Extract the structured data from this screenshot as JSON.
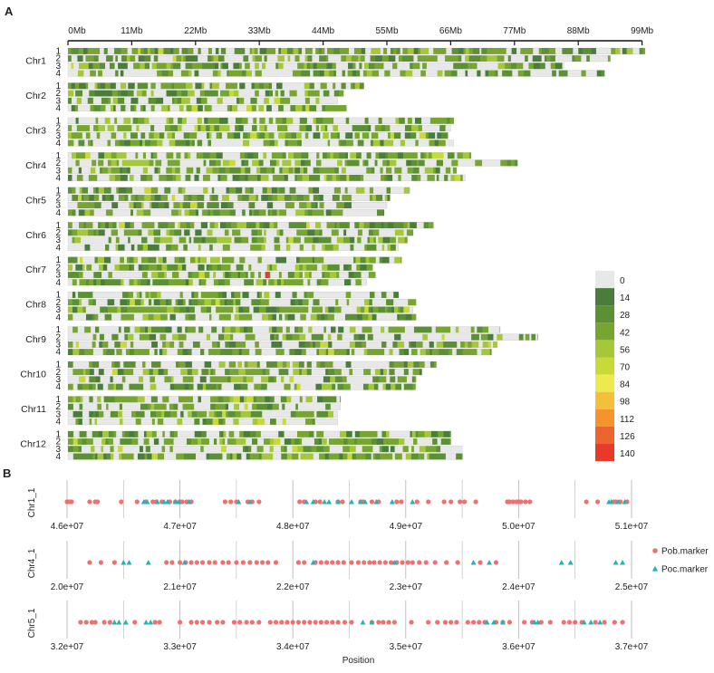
{
  "panel_a_label": "A",
  "panel_b_label": "B",
  "chart_data": [
    {
      "type": "heatmap",
      "x_ticks": [
        "0Mb",
        "11Mb",
        "22Mb",
        "33Mb",
        "44Mb",
        "55Mb",
        "66Mb",
        "77Mb",
        "88Mb",
        "99Mb"
      ],
      "x_tick_values_mb": [
        0,
        11,
        22,
        33,
        44,
        55,
        66,
        77,
        88,
        99
      ],
      "track_labels": [
        "1",
        "2",
        "3",
        "4"
      ],
      "chromosomes": [
        {
          "name": "Chr1",
          "lengths_mb": [
            99.5,
            93.5,
            85.5,
            92.5
          ]
        },
        {
          "name": "Chr2",
          "lengths_mb": [
            51.0,
            47.5,
            46.5,
            48.0
          ]
        },
        {
          "name": "Chr3",
          "lengths_mb": [
            66.5,
            66.0,
            65.5,
            66.5
          ]
        },
        {
          "name": "Chr4",
          "lengths_mb": [
            69.5,
            77.5,
            67.0,
            68.5
          ]
        },
        {
          "name": "Chr5",
          "lengths_mb": [
            59.0,
            55.5,
            55.0,
            54.5
          ]
        },
        {
          "name": "Chr6",
          "lengths_mb": [
            63.0,
            59.5,
            58.5,
            57.0
          ]
        },
        {
          "name": "Chr7",
          "lengths_mb": [
            57.5,
            52.5,
            53.0,
            51.5
          ]
        },
        {
          "name": "Chr8",
          "lengths_mb": [
            57.0,
            60.0,
            59.5,
            60.0
          ]
        },
        {
          "name": "Chr9",
          "lengths_mb": [
            74.5,
            81.0,
            74.0,
            73.0
          ]
        },
        {
          "name": "Chr10",
          "lengths_mb": [
            63.5,
            61.0,
            60.0,
            60.0
          ]
        },
        {
          "name": "Chr11",
          "lengths_mb": [
            47.0,
            47.0,
            46.5,
            46.5
          ]
        },
        {
          "name": "Chr12",
          "lengths_mb": [
            66.0,
            66.0,
            68.0,
            68.0
          ]
        }
      ],
      "highlight": {
        "chromosome": "Chr7",
        "track": "3",
        "position_mb": 34.0,
        "value": 140
      },
      "legend": {
        "values": [
          "0",
          "14",
          "28",
          "42",
          "56",
          "70",
          "84",
          "98",
          "112",
          "126",
          "140"
        ],
        "colors": [
          "#e8e8e8",
          "#4a7d3b",
          "#5c9034",
          "#77a532",
          "#a4c83a",
          "#c8d93a",
          "#ecea4d",
          "#f4c03c",
          "#f3942e",
          "#ee6430",
          "#e83a2a"
        ],
        "placement": "right"
      }
    },
    {
      "type": "scatter",
      "title": "Chr1_1",
      "xlabel": "",
      "x_ticks": [
        "4.6e+07",
        "4.7e+07",
        "4.8e+07",
        "4.9e+07",
        "5.0e+07",
        "5.1e+07"
      ],
      "xlim": [
        46000000,
        51000000
      ],
      "pob_marker": [
        46000000,
        46020000,
        46040000,
        46200000,
        46250000,
        46270000,
        46480000,
        46620000,
        46700000,
        46760000,
        46790000,
        46840000,
        46910000,
        46960000,
        47000000,
        47020000,
        47060000,
        47100000,
        47400000,
        47450000,
        47500000,
        47600000,
        47640000,
        47700000,
        48060000,
        48100000,
        48200000,
        48240000,
        48400000,
        48440000,
        48600000,
        48620000,
        48700000,
        48760000,
        48920000,
        48960000,
        49100000,
        49200000,
        49340000,
        49400000,
        49480000,
        49520000,
        49620000,
        49900000,
        49920000,
        49950000,
        49980000,
        50000000,
        50020000,
        50060000,
        50100000,
        50600000,
        50700000,
        50840000,
        50860000,
        50900000,
        50960000
      ],
      "poc_marker": [
        46680000,
        46710000,
        46800000,
        46860000,
        46890000,
        46960000,
        46990000,
        47080000,
        47520000,
        47620000,
        48120000,
        48180000,
        48280000,
        48320000,
        48400000,
        48520000,
        48600000,
        48640000,
        48740000,
        48880000,
        49060000,
        50800000,
        50820000,
        50880000,
        50940000
      ]
    },
    {
      "type": "scatter",
      "title": "Chr4_1",
      "xlabel": "",
      "x_ticks": [
        "2.0e+07",
        "2.1e+07",
        "2.2e+07",
        "2.3e+07",
        "2.4e+07",
        "2.5e+07"
      ],
      "xlim": [
        20000000,
        25000000
      ],
      "pob_marker": [
        20200000,
        20300000,
        20420000,
        20880000,
        20930000,
        21000000,
        21050000,
        21100000,
        21150000,
        21200000,
        21260000,
        21310000,
        21380000,
        21430000,
        21500000,
        21560000,
        21620000,
        21680000,
        21730000,
        21780000,
        21850000,
        22050000,
        22100000,
        22200000,
        22250000,
        22300000,
        22350000,
        22400000,
        22450000,
        22520000,
        22580000,
        22630000,
        22680000,
        22720000,
        22770000,
        22820000,
        22870000,
        22920000,
        22970000,
        23020000,
        23060000,
        23120000,
        23180000,
        23260000,
        23360000,
        23460000,
        23660000,
        23800000
      ],
      "poc_marker": [
        20500000,
        20550000,
        20720000,
        21040000,
        22180000,
        22900000,
        23600000,
        23740000,
        24380000,
        24460000,
        24860000,
        24920000
      ]
    },
    {
      "type": "scatter",
      "title": "Chr5_1",
      "xlabel": "Position",
      "x_ticks": [
        "3.2e+07",
        "3.3e+07",
        "3.4e+07",
        "3.5e+07",
        "3.6e+07",
        "3.7e+07"
      ],
      "xlim": [
        32000000,
        37000000
      ],
      "pob_marker": [
        32120000,
        32170000,
        32220000,
        32250000,
        32330000,
        32380000,
        32600000,
        32780000,
        32820000,
        33000000,
        33100000,
        33150000,
        33200000,
        33260000,
        33330000,
        33380000,
        33480000,
        33530000,
        33590000,
        33640000,
        33700000,
        33800000,
        33850000,
        33900000,
        33950000,
        34000000,
        34050000,
        34100000,
        34150000,
        34200000,
        34250000,
        34300000,
        34350000,
        34400000,
        34460000,
        34520000,
        34700000,
        34760000,
        34800000,
        34850000,
        34900000,
        35050000,
        35200000,
        35280000,
        35350000,
        35400000,
        35450000,
        35550000,
        35600000,
        35650000,
        35700000,
        35800000,
        35860000,
        35920000,
        36050000,
        36120000,
        36200000,
        36280000,
        36400000,
        36450000,
        36500000,
        36560000,
        36680000,
        36760000,
        36850000,
        36920000
      ],
      "poc_marker": [
        32420000,
        32460000,
        32520000,
        32700000,
        32740000,
        34620000,
        34700000,
        35720000,
        35780000,
        35860000,
        36140000,
        36170000,
        36580000,
        36640000,
        36720000
      ]
    }
  ],
  "legend_b": {
    "items": [
      {
        "name": "Pob.marker",
        "color": "#f07070",
        "shape": "circle"
      },
      {
        "name": "Poc.marker",
        "color": "#26b2b6",
        "shape": "triangle"
      }
    ]
  }
}
